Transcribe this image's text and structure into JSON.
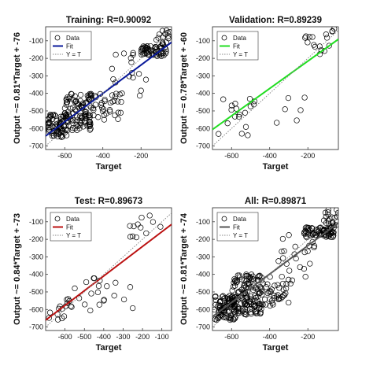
{
  "chart_data": [
    {
      "type": "scatter",
      "title": "Training: R=0.90092",
      "xlabel": "Target",
      "ylabel": "Output ~= 0.81*Target + -76",
      "xlim": [
        -700,
        -40
      ],
      "ylim": [
        -720,
        -20
      ],
      "xticks": [
        -600,
        -400,
        -200
      ],
      "yticks": [
        -700,
        -600,
        -500,
        -400,
        -300,
        -200,
        -100
      ],
      "grid": false,
      "legend_position": "top-left",
      "series": [
        {
          "name": "Data",
          "kind": "points",
          "color": "#000000",
          "marker": "open-circle",
          "clusters": [
            {
              "x": [
                -690,
                -590
              ],
              "y": [
                -650,
                -520
              ],
              "n": 70
            },
            {
              "x": [
                -600,
                -460
              ],
              "y": [
                -610,
                -400
              ],
              "n": 110
            },
            {
              "x": [
                -480,
                -300
              ],
              "y": [
                -560,
                -400
              ],
              "n": 35
            },
            {
              "x": [
                -200,
                -60
              ],
              "y": [
                -190,
                -130
              ],
              "n": 55
            },
            {
              "x": [
                -120,
                -50
              ],
              "y": [
                -130,
                -30
              ],
              "n": 15
            },
            {
              "x": [
                -360,
                -160
              ],
              "y": [
                -430,
                -160
              ],
              "n": 18
            }
          ]
        },
        {
          "name": "Fit",
          "kind": "line",
          "color": "#0a1a9a",
          "slope": 0.81,
          "intercept": -76
        },
        {
          "name": "Y = T",
          "kind": "line",
          "color": "#888888",
          "style": "dotted",
          "slope": 1,
          "intercept": 0
        }
      ]
    },
    {
      "type": "scatter",
      "title": "Validation: R=0.89239",
      "xlabel": "Target",
      "ylabel": "Output ~= 0.78*Target + -60",
      "xlim": [
        -700,
        -40
      ],
      "ylim": [
        -720,
        -20
      ],
      "xticks": [
        -600,
        -400,
        -200
      ],
      "yticks": [
        -700,
        -600,
        -500,
        -400,
        -300,
        -200,
        -100
      ],
      "grid": false,
      "legend_position": "top-left",
      "series": [
        {
          "name": "Data",
          "kind": "points",
          "color": "#000000",
          "marker": "open-circle",
          "clusters": [
            {
              "x": [
                -680,
                -460
              ],
              "y": [
                -640,
                -420
              ],
              "n": 18
            },
            {
              "x": [
                -400,
                -200
              ],
              "y": [
                -600,
                -420
              ],
              "n": 6
            },
            {
              "x": [
                -220,
                -60
              ],
              "y": [
                -180,
                -60
              ],
              "n": 14
            },
            {
              "x": [
                -80,
                -40
              ],
              "y": [
                -70,
                -30
              ],
              "n": 3
            }
          ]
        },
        {
          "name": "Fit",
          "kind": "line",
          "color": "#22dd22",
          "slope": 0.78,
          "intercept": -60
        },
        {
          "name": "Y = T",
          "kind": "line",
          "color": "#888888",
          "style": "dotted",
          "slope": 1,
          "intercept": 0
        }
      ]
    },
    {
      "type": "scatter",
      "title": "Test: R=0.89673",
      "xlabel": "Target",
      "ylabel": "Output ~= 0.84*Target + -73",
      "xlim": [
        -700,
        -50
      ],
      "ylim": [
        -720,
        -20
      ],
      "xticks": [
        -600,
        -500,
        -400,
        -300,
        -200,
        -100
      ],
      "yticks": [
        -700,
        -600,
        -500,
        -400,
        -300,
        -200,
        -100
      ],
      "grid": false,
      "legend_position": "top-left",
      "series": [
        {
          "name": "Data",
          "kind": "points",
          "color": "#000000",
          "marker": "open-circle",
          "clusters": [
            {
              "x": [
                -690,
                -560
              ],
              "y": [
                -660,
                -540
              ],
              "n": 16
            },
            {
              "x": [
                -560,
                -420
              ],
              "y": [
                -640,
                -420
              ],
              "n": 12
            },
            {
              "x": [
                -400,
                -200
              ],
              "y": [
                -600,
                -400
              ],
              "n": 8
            },
            {
              "x": [
                -280,
                -60
              ],
              "y": [
                -250,
                -30
              ],
              "n": 12
            }
          ]
        },
        {
          "name": "Fit",
          "kind": "line",
          "color": "#bb1111",
          "slope": 0.84,
          "intercept": -73
        },
        {
          "name": "Y = T",
          "kind": "line",
          "color": "#888888",
          "style": "dotted",
          "slope": 1,
          "intercept": 0
        }
      ]
    },
    {
      "type": "scatter",
      "title": "All: R=0.89871",
      "xlabel": "Target",
      "ylabel": "Output ~= 0.81*Target + -74",
      "xlim": [
        -700,
        -40
      ],
      "ylim": [
        -720,
        -20
      ],
      "xticks": [
        -600,
        -400,
        -200
      ],
      "yticks": [
        -700,
        -600,
        -500,
        -400,
        -300,
        -200,
        -100
      ],
      "grid": false,
      "legend_position": "top-left",
      "series": [
        {
          "name": "Data",
          "kind": "points",
          "color": "#000000",
          "marker": "open-circle",
          "clusters": [
            {
              "x": [
                -690,
                -580
              ],
              "y": [
                -660,
                -520
              ],
              "n": 90
            },
            {
              "x": [
                -600,
                -440
              ],
              "y": [
                -630,
                -400
              ],
              "n": 140
            },
            {
              "x": [
                -460,
                -280
              ],
              "y": [
                -580,
                -400
              ],
              "n": 45
            },
            {
              "x": [
                -220,
                -60
              ],
              "y": [
                -190,
                -130
              ],
              "n": 70
            },
            {
              "x": [
                -120,
                -40
              ],
              "y": [
                -130,
                -30
              ],
              "n": 20
            },
            {
              "x": [
                -360,
                -160
              ],
              "y": [
                -430,
                -160
              ],
              "n": 22
            }
          ]
        },
        {
          "name": "Fit",
          "kind": "line",
          "color": "#555555",
          "slope": 0.81,
          "intercept": -74
        },
        {
          "name": "Y = T",
          "kind": "line",
          "color": "#888888",
          "style": "dotted",
          "slope": 1,
          "intercept": 0
        }
      ]
    }
  ]
}
